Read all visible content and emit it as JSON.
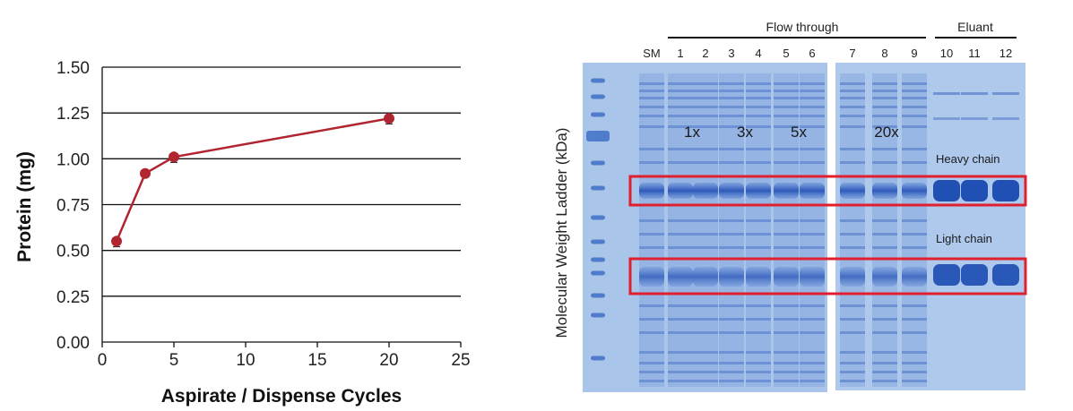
{
  "chart_data": {
    "type": "line",
    "xlabel": "Aspirate / Dispense Cycles",
    "ylabel": "Protein (mg)",
    "xlim": [
      0,
      25
    ],
    "ylim": [
      0,
      1.5
    ],
    "xticks": [
      "0",
      "5",
      "10",
      "15",
      "20",
      "25"
    ],
    "yticks": [
      "0.00",
      "0.25",
      "0.50",
      "0.75",
      "1.00",
      "1.25",
      "1.50"
    ],
    "grid": "horizontal",
    "series": [
      {
        "color": "#b0252f",
        "points": [
          {
            "x": 1,
            "y": 0.55,
            "err": 0.03
          },
          {
            "x": 3,
            "y": 0.92,
            "err": 0.01
          },
          {
            "x": 5,
            "y": 1.01,
            "err": 0.03
          },
          {
            "x": 20,
            "y": 1.22,
            "err": 0.03
          }
        ]
      }
    ]
  },
  "gel": {
    "ylabel": "Molecular Weight Ladder (kDa)",
    "group_flow": "Flow through",
    "group_eluant": "Eluant",
    "lane_labels": [
      "SM",
      "1",
      "2",
      "3",
      "4",
      "5",
      "6",
      "7",
      "8",
      "9",
      "10",
      "11",
      "12"
    ],
    "cycle_labels": [
      "1x",
      "3x",
      "5x",
      "20x"
    ],
    "heavy_label": "Heavy chain",
    "light_label": "Light chain",
    "highlight_color": "#e0202f"
  }
}
